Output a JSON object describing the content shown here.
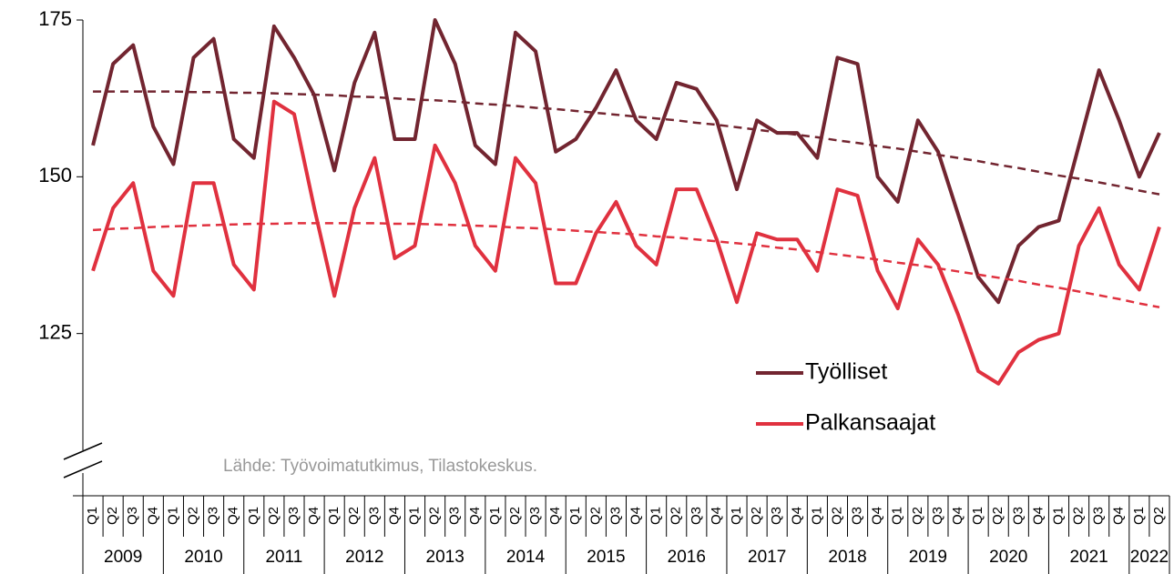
{
  "chart_data": {
    "type": "line",
    "categories": [
      "Q1",
      "Q2",
      "Q3",
      "Q4",
      "Q1",
      "Q2",
      "Q3",
      "Q4",
      "Q1",
      "Q2",
      "Q3",
      "Q4",
      "Q1",
      "Q2",
      "Q3",
      "Q4",
      "Q1",
      "Q2",
      "Q3",
      "Q4",
      "Q1",
      "Q2",
      "Q3",
      "Q4",
      "Q1",
      "Q2",
      "Q3",
      "Q4",
      "Q1",
      "Q2",
      "Q3",
      "Q4",
      "Q1",
      "Q2",
      "Q3",
      "Q4",
      "Q1",
      "Q2",
      "Q3",
      "Q4",
      "Q1",
      "Q2",
      "Q3",
      "Q4",
      "Q1",
      "Q2",
      "Q3",
      "Q4",
      "Q1",
      "Q2",
      "Q3",
      "Q4",
      "Q1",
      "Q2"
    ],
    "groups": [
      "2009",
      "2010",
      "2011",
      "2012",
      "2013",
      "2014",
      "2015",
      "2016",
      "2017",
      "2018",
      "2019",
      "2020",
      "2021",
      "2022"
    ],
    "series": [
      {
        "name": "Työlliset",
        "color": "#722530",
        "values": [
          155,
          168,
          171,
          158,
          152,
          169,
          172,
          156,
          153,
          174,
          169,
          163,
          151,
          165,
          173,
          156,
          156,
          175,
          168,
          155,
          152,
          173,
          170,
          154,
          156,
          161,
          167,
          159,
          156,
          165,
          164,
          159,
          148,
          159,
          157,
          157,
          153,
          169,
          168,
          150,
          146,
          159,
          154,
          144,
          134,
          130,
          139,
          142,
          143,
          155,
          167,
          159,
          150,
          157
        ],
        "trend": [
          163.6,
          163.6,
          163.6,
          163.6,
          163.6,
          163.5,
          163.5,
          163.4,
          163.4,
          163.3,
          163.2,
          163.1,
          163.0,
          162.8,
          162.7,
          162.5,
          162.3,
          162.2,
          162.0,
          161.7,
          161.5,
          161.3,
          161.0,
          160.8,
          160.5,
          160.2,
          159.9,
          159.6,
          159.3,
          159.0,
          158.6,
          158.3,
          157.9,
          157.5,
          157.1,
          156.7,
          156.3,
          155.8,
          155.4,
          154.9,
          154.5,
          154.0,
          153.5,
          153.0,
          152.5,
          151.9,
          151.4,
          150.8,
          150.2,
          149.7,
          149.1,
          148.5,
          147.8,
          147.2
        ]
      },
      {
        "name": "Palkansaajat",
        "color": "#e0313f",
        "values": [
          135,
          145,
          149,
          135,
          131,
          149,
          149,
          136,
          132,
          162,
          160,
          145,
          131,
          145,
          153,
          137,
          139,
          155,
          149,
          139,
          135,
          153,
          149,
          133,
          133,
          141,
          146,
          139,
          136,
          148,
          148,
          140,
          130,
          141,
          140,
          140,
          135,
          148,
          147,
          135,
          129,
          140,
          136,
          128,
          119,
          117,
          122,
          124,
          125,
          139,
          145,
          136,
          132,
          142
        ],
        "trend": [
          141.5,
          141.7,
          141.8,
          142.0,
          142.1,
          142.2,
          142.3,
          142.4,
          142.5,
          142.5,
          142.6,
          142.6,
          142.6,
          142.6,
          142.6,
          142.5,
          142.5,
          142.4,
          142.3,
          142.2,
          142.1,
          141.9,
          141.8,
          141.6,
          141.4,
          141.2,
          141.0,
          140.8,
          140.5,
          140.3,
          140.0,
          139.7,
          139.4,
          139.1,
          138.7,
          138.4,
          138.0,
          137.6,
          137.2,
          136.8,
          136.3,
          135.9,
          135.4,
          134.9,
          134.4,
          133.9,
          133.4,
          132.8,
          132.3,
          131.7,
          131.1,
          130.5,
          129.8,
          129.2
        ]
      }
    ],
    "ylim": [
      100,
      175
    ],
    "yticks": [
      125,
      150,
      175
    ],
    "source": "Lähde: Työvoimatutkimus, Tilastokeskus."
  }
}
